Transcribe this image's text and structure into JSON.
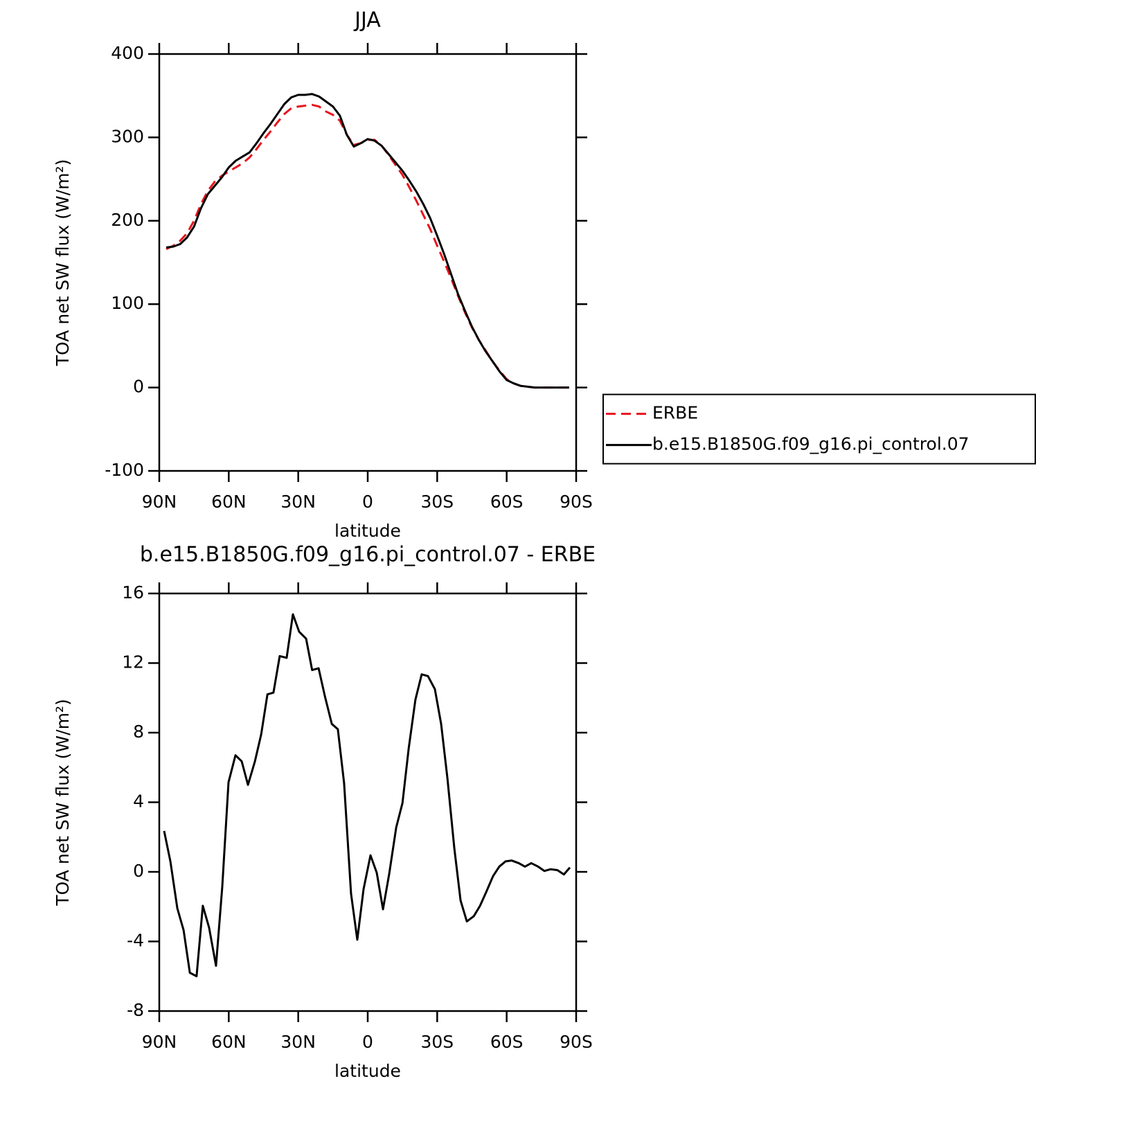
{
  "chart_data": [
    {
      "type": "line",
      "title": "JJA",
      "xlabel": "latitude",
      "ylabel": "TOA net SW flux (W/m²)",
      "x": [
        87,
        84,
        81,
        78,
        75,
        72,
        69,
        66,
        63,
        60,
        57,
        54,
        51,
        48,
        45,
        42,
        39,
        36,
        33,
        30,
        27,
        24,
        21,
        18,
        15,
        12,
        9,
        6,
        3,
        0,
        -3,
        -6,
        -9,
        -12,
        -15,
        -18,
        -21,
        -24,
        -27,
        -30,
        -33,
        -36,
        -39,
        -42,
        -45,
        -48,
        -51,
        -54,
        -57,
        -60,
        -63,
        -66,
        -69,
        -72,
        -75,
        -78,
        -81,
        -84,
        -87
      ],
      "series": [
        {
          "name": "ERBE",
          "color": "#e8141c",
          "dashed": true,
          "values": [
            166,
            170,
            176,
            185,
            200,
            220,
            236,
            247,
            254,
            259,
            264,
            269,
            276,
            286,
            297,
            307,
            318,
            328,
            335,
            337,
            338,
            339,
            337,
            331,
            327,
            320,
            303,
            291,
            293,
            297,
            297,
            290,
            279,
            267,
            255,
            240,
            224,
            207,
            190,
            170,
            151,
            131,
            110,
            90,
            72,
            57,
            44,
            31,
            20,
            10,
            5,
            2,
            1,
            0,
            0,
            0,
            0,
            0,
            0
          ]
        },
        {
          "name": "b.e15.B1850G.f09_g16.pi_control.07",
          "color": "#000000",
          "dashed": false,
          "values": [
            168,
            169,
            172,
            180,
            193,
            215,
            232,
            242,
            252,
            264,
            272,
            277,
            282,
            293,
            305,
            316,
            328,
            340,
            348,
            351,
            351,
            352,
            349,
            343,
            337,
            326,
            303,
            289,
            293,
            298,
            296,
            290,
            280,
            270,
            260,
            248,
            235,
            220,
            203,
            182,
            160,
            136,
            112,
            92,
            73,
            57,
            43,
            31,
            19,
            9,
            5,
            2,
            1,
            0,
            0,
            0,
            0,
            0,
            0
          ]
        }
      ],
      "xlim": [
        90,
        -90
      ],
      "xticks": [
        {
          "value": 90,
          "label": "90N"
        },
        {
          "value": 60,
          "label": "60N"
        },
        {
          "value": 30,
          "label": "30N"
        },
        0,
        {
          "value": -30,
          "label": "30S"
        },
        {
          "value": -60,
          "label": "60S"
        },
        {
          "value": -90,
          "label": "90S"
        }
      ],
      "ylim": [
        -100,
        400
      ],
      "yticks": [
        -100,
        0,
        100,
        200,
        300,
        400
      ],
      "legend": "right"
    },
    {
      "type": "line",
      "title": "b.e15.B1850G.f09_g16.pi_control.07 - ERBE",
      "xlabel": "latitude",
      "ylabel": "TOA net SW flux (W/m²)",
      "x": [
        87.9,
        85.2,
        82.2,
        79.5,
        76.8,
        73.9,
        71.2,
        68.5,
        65.5,
        62.8,
        60.1,
        57.1,
        54.4,
        51.7,
        48.7,
        46.0,
        43.3,
        40.7,
        38.0,
        35.0,
        32.3,
        29.6,
        26.6,
        24.0,
        21.2,
        18.5,
        15.5,
        12.9,
        10.2,
        7.2,
        4.5,
        1.8,
        -1.2,
        -3.9,
        -6.6,
        -9.3,
        -12.3,
        -15.0,
        -17.7,
        -20.6,
        -23.3,
        -26.0,
        -29.0,
        -31.7,
        -34.4,
        -37.4,
        -40.1,
        -42.8,
        -45.8,
        -48.5,
        -51.2,
        -54.1,
        -56.8,
        -59.5,
        -62.2,
        -65.2,
        -67.9,
        -70.6,
        -73.6,
        -76.3,
        -79.0,
        -81.9,
        -84.7,
        -87.3
      ],
      "series": [
        {
          "color": "#000000",
          "dashed": false,
          "values": [
            2.35,
            0.6,
            -2.1,
            -3.35,
            -5.8,
            -6.0,
            -1.95,
            -3.2,
            -5.4,
            -0.85,
            5.15,
            6.7,
            6.35,
            5.0,
            6.35,
            7.9,
            10.2,
            10.3,
            12.4,
            12.3,
            14.8,
            13.8,
            13.4,
            11.6,
            11.7,
            10.1,
            8.5,
            8.2,
            5.1,
            -1.25,
            -3.9,
            -1.0,
            0.95,
            -0.05,
            -2.15,
            -0.1,
            2.55,
            3.95,
            7.1,
            9.9,
            11.35,
            11.25,
            10.5,
            8.5,
            5.4,
            1.35,
            -1.65,
            -2.85,
            -2.55,
            -1.95,
            -1.15,
            -0.25,
            0.3,
            0.6,
            0.65,
            0.5,
            0.3,
            0.5,
            0.3,
            0.05,
            0.15,
            0.1,
            -0.15,
            0.25
          ]
        }
      ],
      "xlim": [
        90,
        -90
      ],
      "xticks": [
        {
          "value": 90,
          "label": "90N"
        },
        {
          "value": 60,
          "label": "60N"
        },
        {
          "value": 30,
          "label": "30N"
        },
        0,
        {
          "value": -30,
          "label": "30S"
        },
        {
          "value": -60,
          "label": "60S"
        },
        {
          "value": -90,
          "label": "90S"
        }
      ],
      "ylim": [
        -8,
        16
      ],
      "yticks": [
        -8,
        -4,
        0,
        4,
        8,
        12,
        16
      ]
    }
  ]
}
